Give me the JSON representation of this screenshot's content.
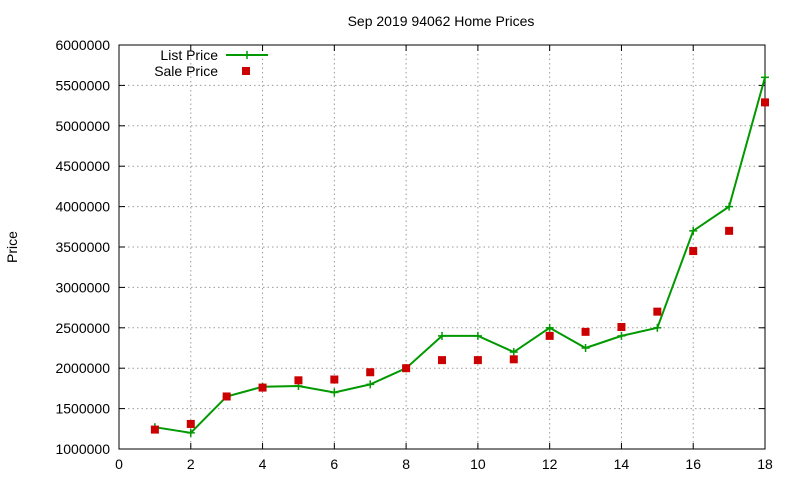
{
  "chart_data": {
    "type": "line",
    "title": "Sep 2019 94062 Home Prices",
    "xlabel": "",
    "ylabel": "Price",
    "xlim": [
      0,
      18
    ],
    "ylim": [
      1000000,
      6000000
    ],
    "x_ticks": [
      0,
      2,
      4,
      6,
      8,
      10,
      12,
      14,
      16,
      18
    ],
    "y_ticks": [
      1000000,
      1500000,
      2000000,
      2500000,
      3000000,
      3500000,
      4000000,
      4500000,
      5000000,
      5500000,
      6000000
    ],
    "grid": true,
    "legend_position": "top-left",
    "x": [
      1,
      2,
      3,
      4,
      5,
      6,
      7,
      8,
      9,
      10,
      11,
      12,
      13,
      14,
      15,
      16,
      17,
      18
    ],
    "series": [
      {
        "name": "List Price",
        "style": "line-plus",
        "color": "#009900",
        "values": [
          1270000,
          1200000,
          1650000,
          1770000,
          1780000,
          1700000,
          1800000,
          2000000,
          2400000,
          2400000,
          2200000,
          2500000,
          2250000,
          2400000,
          2500000,
          3700000,
          4000000,
          5600000
        ]
      },
      {
        "name": "Sale Price",
        "style": "square-points",
        "color": "#cc0000",
        "values": [
          1240000,
          1310000,
          1650000,
          1760000,
          1850000,
          1860000,
          1950000,
          2000000,
          2100000,
          2100000,
          2110000,
          2400000,
          2450000,
          2510000,
          2700000,
          3450000,
          3700000,
          5290000
        ]
      }
    ]
  }
}
